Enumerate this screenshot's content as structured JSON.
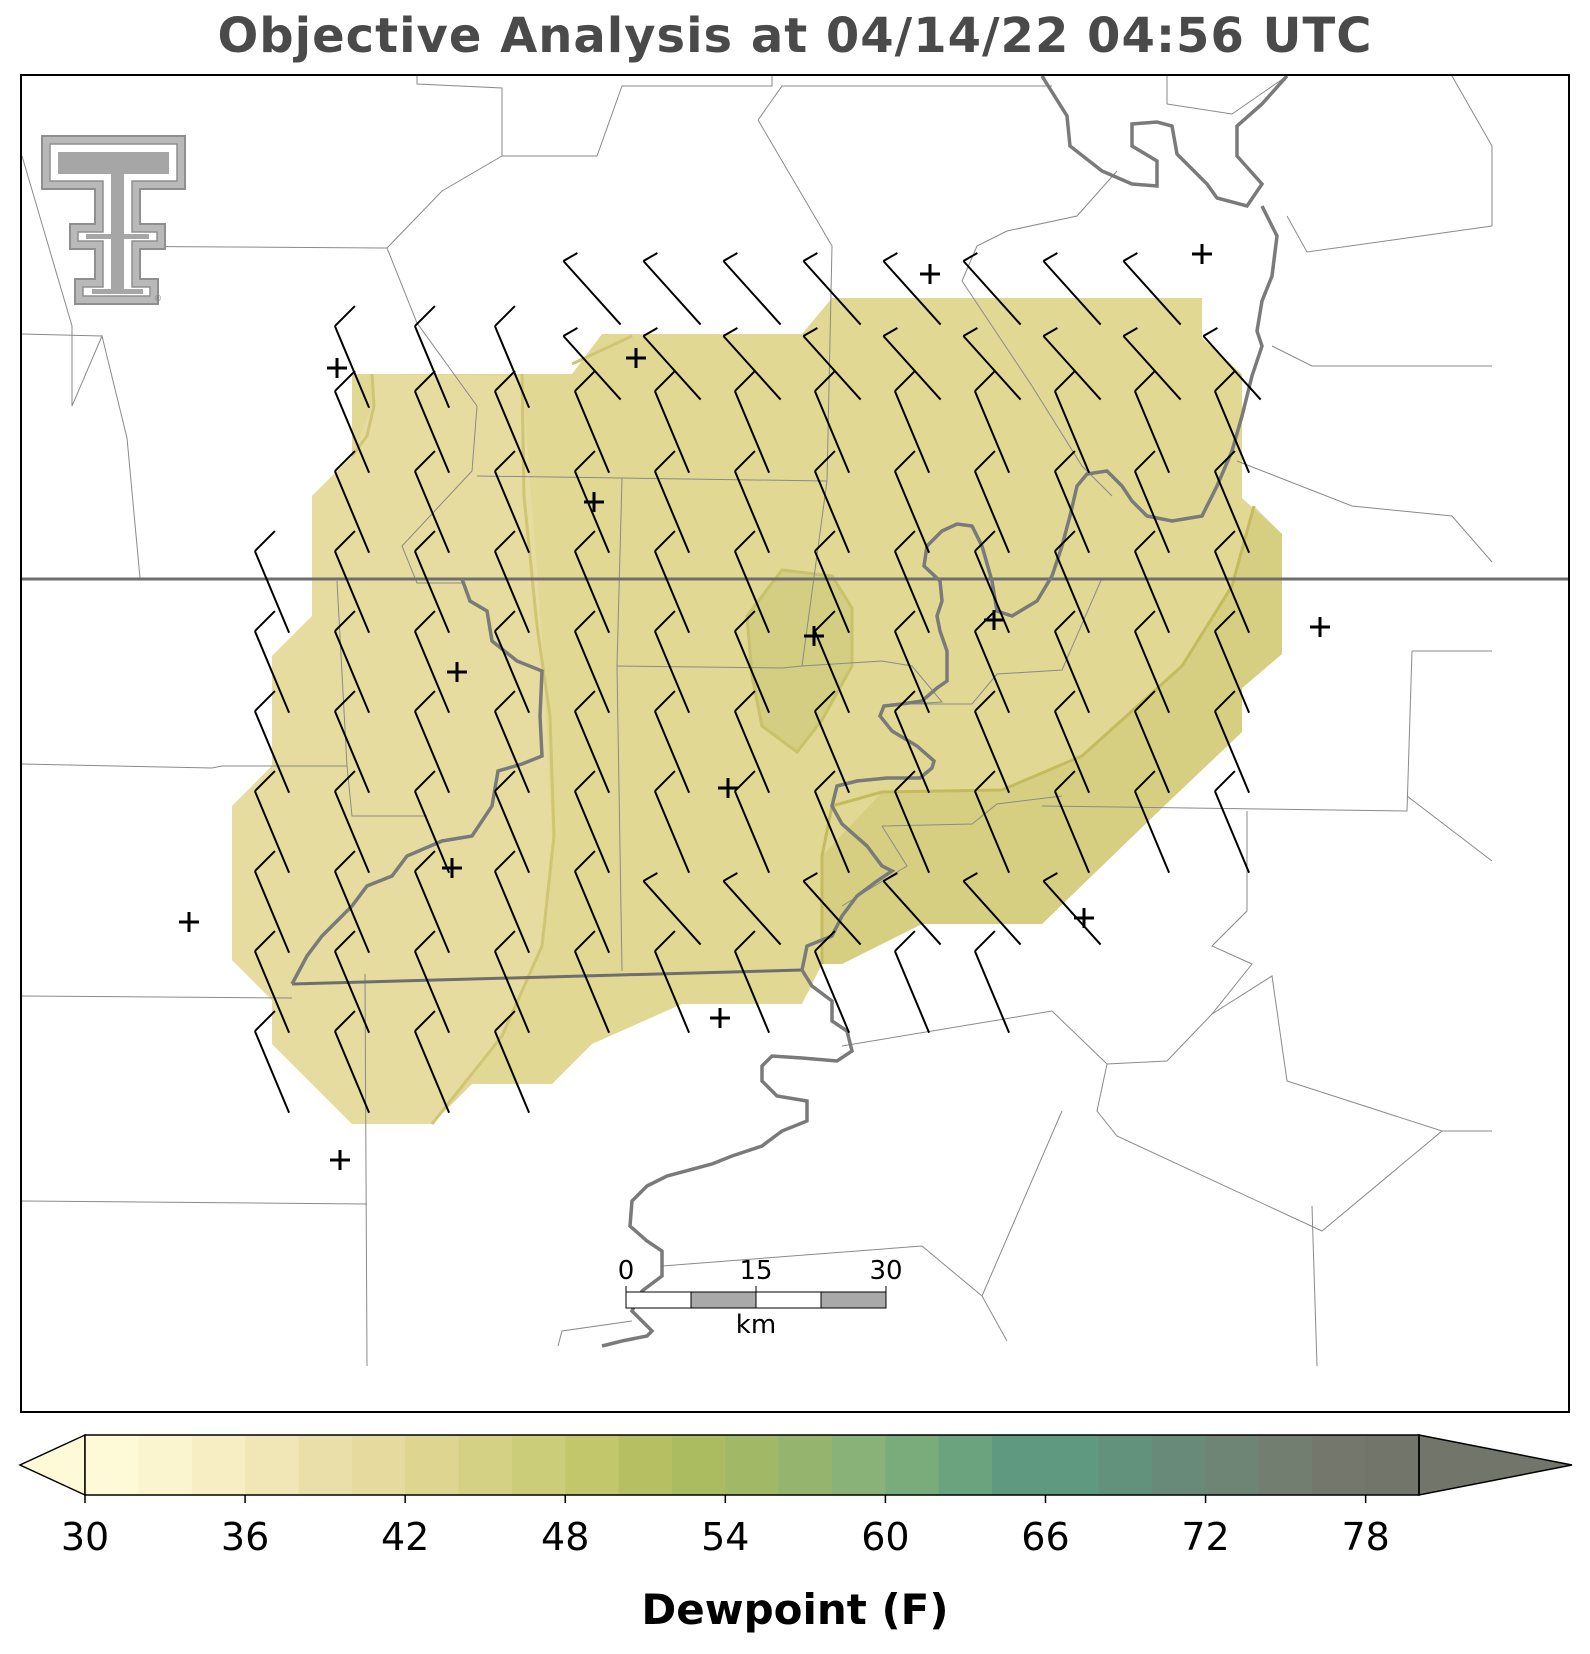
{
  "title": "Objective Analysis at 04/14/22 04:56 UTC",
  "logo": {
    "icon": "texas-tech-double-t-logo",
    "mark": "®"
  },
  "colorbar": {
    "label": "Dewpoint (F)",
    "min": 30,
    "max": 80,
    "step": 2,
    "ticks": [
      "30",
      "36",
      "42",
      "48",
      "54",
      "60",
      "66",
      "72",
      "78"
    ],
    "colors": [
      "#fefad8",
      "#fbf5cf",
      "#f7eec4",
      "#f1e6b6",
      "#ebdfa9",
      "#e6da9e",
      "#ded690",
      "#d5d184",
      "#cccd78",
      "#c2c76c",
      "#b6c063",
      "#abbb60",
      "#a1b867",
      "#95b56f",
      "#88b277",
      "#7aab7b",
      "#6ca37f",
      "#5f9a80",
      "#5f9a80",
      "#62917c",
      "#688a78",
      "#6e8575",
      "#727f70",
      "#74786c",
      "#71756a"
    ]
  },
  "scale_bar": {
    "labels": [
      "0",
      "15",
      "30"
    ],
    "unit": "km"
  },
  "chart_data": {
    "type": "map",
    "field": "Dewpoint (F)",
    "field_range": [
      40,
      48
    ],
    "features": [
      "state-borders",
      "county-borders",
      "rivers",
      "wind-barbs",
      "station-markers"
    ]
  },
  "colors": {
    "frame": "#000000",
    "county": "#888888",
    "state": "#6e6e6e",
    "river": "#7a7a7a",
    "barb": "#000000"
  }
}
